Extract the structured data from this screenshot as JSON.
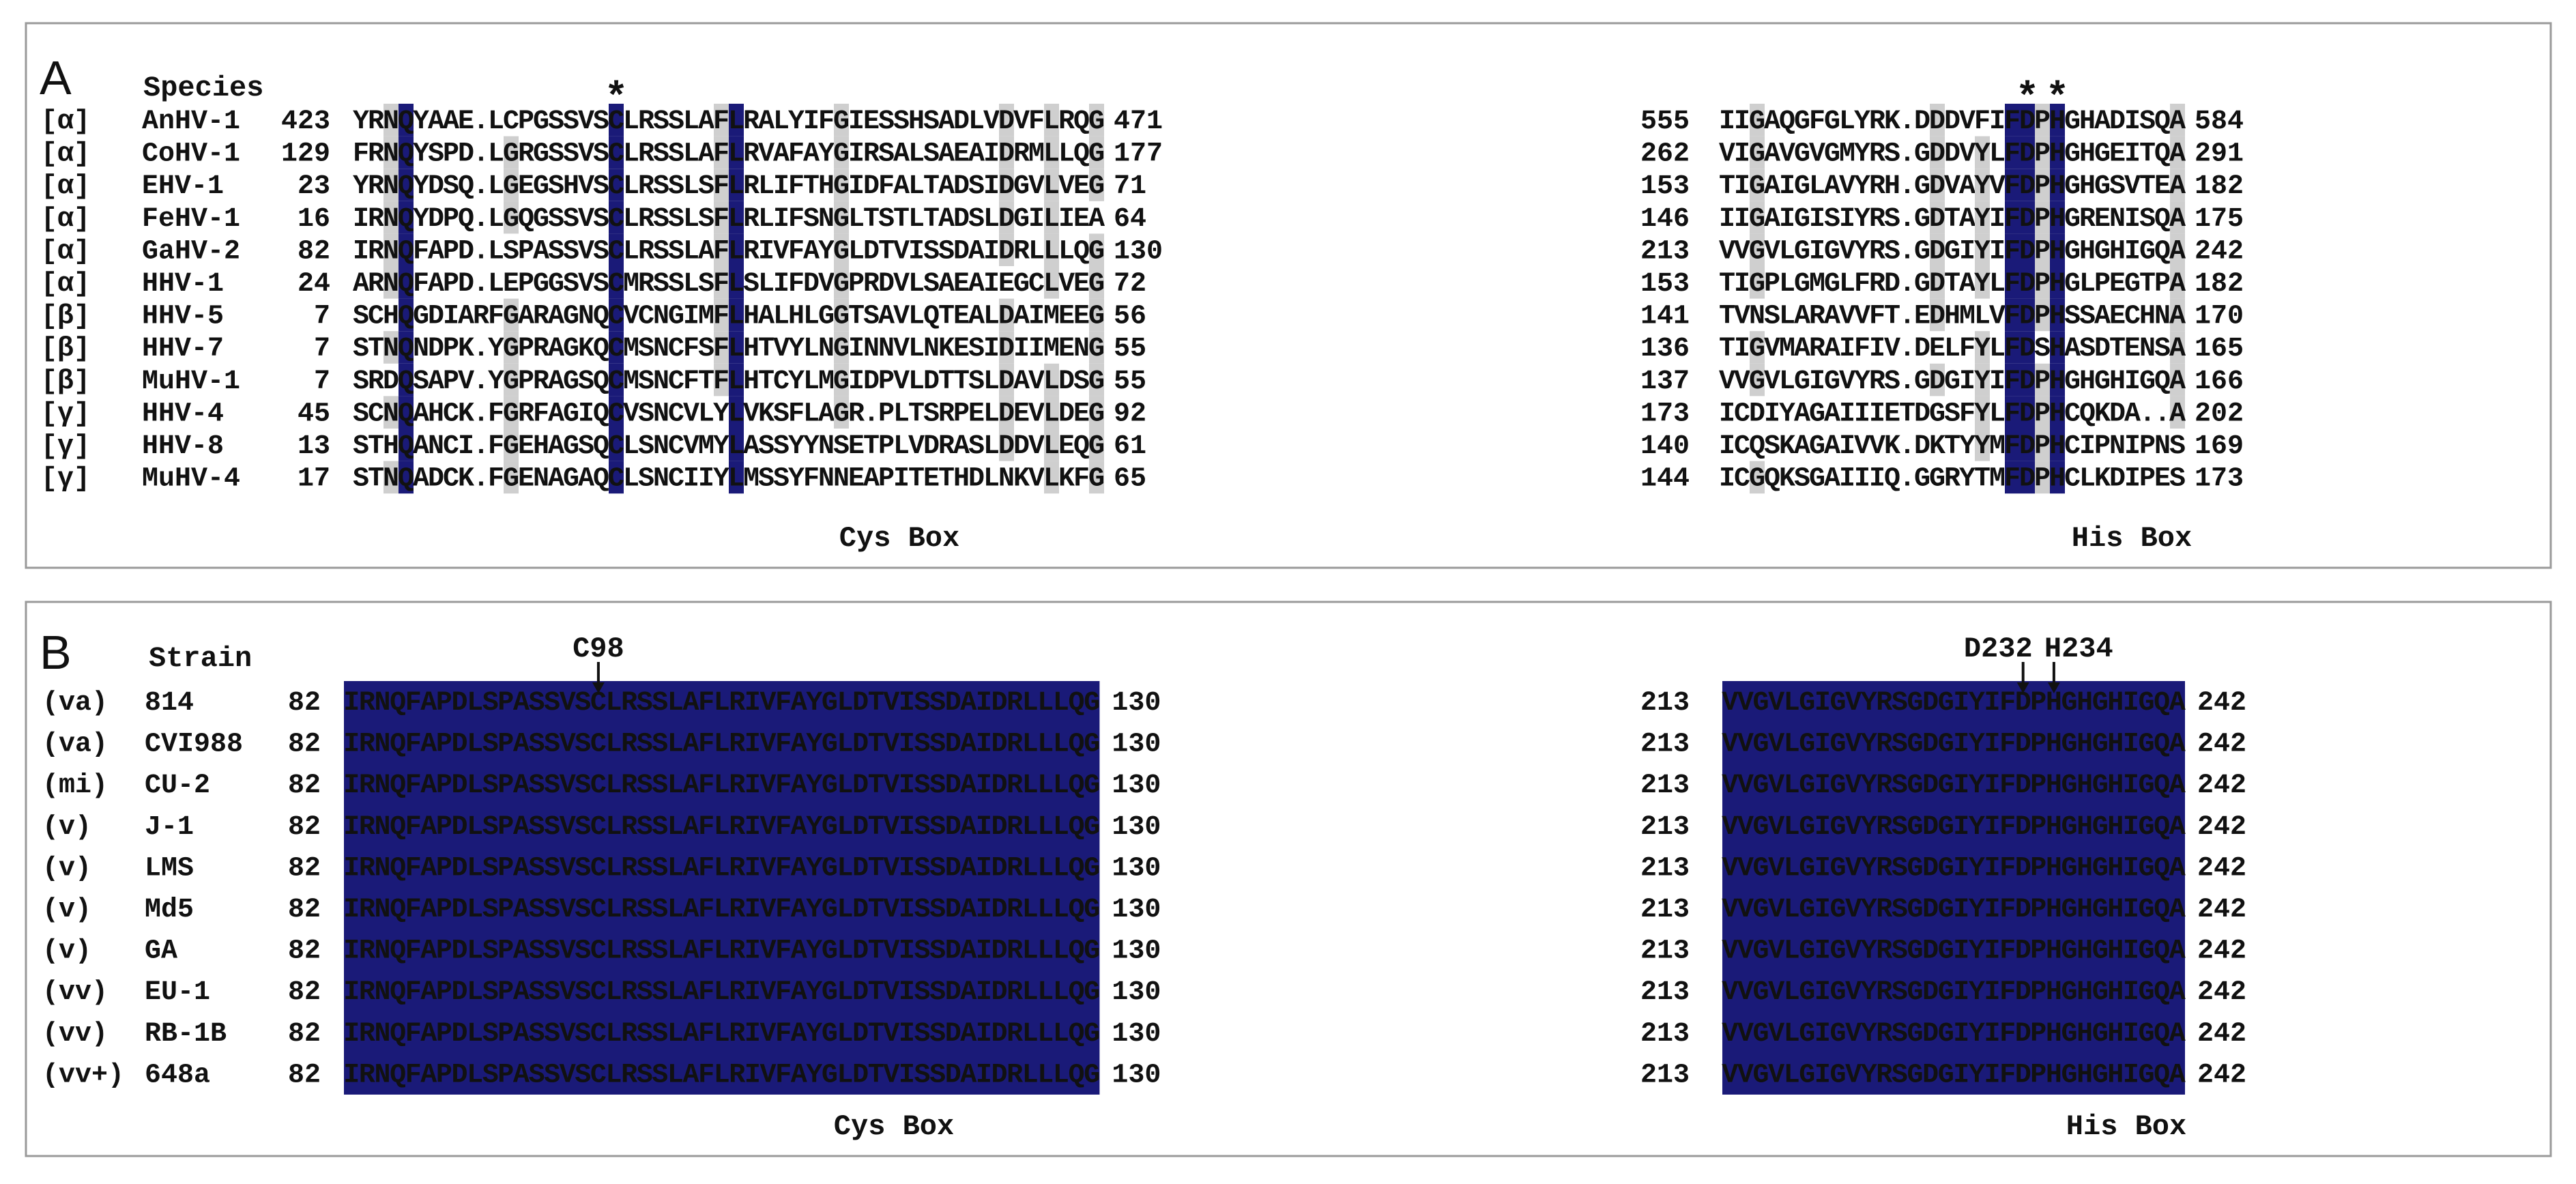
{
  "panel_a": {
    "label": "A",
    "header": "Species",
    "box_labels": [
      "Cys Box",
      "His Box"
    ],
    "rows": [
      {
        "cls": "[α]",
        "name": "AnHV-1",
        "s1": "423",
        "cys": "YRNQYAAE.LCPGSSVSCLRSSLAFLRALYIFGIESSHSADLVDVFLRQG",
        "e1": "471",
        "s2": "555",
        "his": "IIGAQGFGLYRK.DDDVFIFDPHGHADISQA",
        "e2": "584"
      },
      {
        "cls": "[α]",
        "name": "CoHV-1",
        "s1": "129",
        "cys": "FRNQYSPD.LGRGSSVSCLRSSLAFLRVAFAYGIRSALSAEAIDRMLLQG",
        "e1": "177",
        "s2": "262",
        "his": "VIGAVGVGMYRS.GDDVYLFDPHGHGEITQA",
        "e2": "291"
      },
      {
        "cls": "[α]",
        "name": "EHV-1",
        "s1": "23",
        "cys": "YRNQYDSQ.LGEGSHVSCLRSSLSFLRLIFTHGIDFALTADSIDGVLVEG",
        "e1": "71",
        "s2": "153",
        "his": "TIGAIGLAVYRH.GDVAYVFDPHGHGSVTEA",
        "e2": "182"
      },
      {
        "cls": "[α]",
        "name": "FeHV-1",
        "s1": "16",
        "cys": "IRNQYDPQ.LGQGSSVSCLRSSLSFLRLIFSNGLTSTLTADSLDGILIEA",
        "e1": "64",
        "s2": "146",
        "his": "IIGAIGISIYRS.GDTAYIFDPHGRENISQA",
        "e2": "175"
      },
      {
        "cls": "[α]",
        "name": "GaHV-2",
        "s1": "82",
        "cys": "IRNQFAPD.LSPASSVSCLRSSLAFLRIVFAYGLDTVISSDAIDRLLLQG",
        "e1": "130",
        "s2": "213",
        "his": "VVGVLGIGVYRS.GDGIYIFDPHGHGHIGQA",
        "e2": "242"
      },
      {
        "cls": "[α]",
        "name": "HHV-1",
        "s1": "24",
        "cys": "ARNQFAPD.LEPGGSVSCMRSSLSFLSLIFDVGPRDVLSAEAIEGCLVEG",
        "e1": "72",
        "s2": "153",
        "his": "TIGPLGMGLFRD.GDTAYLFDPHGLPEGTPA",
        "e2": "182"
      },
      {
        "cls": "[β]",
        "name": "HHV-5",
        "s1": "7",
        "cys": "SCHQGDIARFGARAGNQCVCNGIMFLHALHLGGTSAVLQTEALDAIMEEG",
        "e1": "56",
        "s2": "141",
        "his": "TVNSLARAVVFT.EDHMLVFDPHSSAECHNA",
        "e2": "170"
      },
      {
        "cls": "[β]",
        "name": "HHV-7",
        "s1": "7",
        "cys": "STNQNDPK.YGPRAGKQCMSNCFSFLHTVYLNGINNVLNKESIDIIMENG",
        "e1": "55",
        "s2": "136",
        "his": "TIGVMARAIFIV.DELFYLFDSHASDTENSA",
        "e2": "165"
      },
      {
        "cls": "[β]",
        "name": "MuHV-1",
        "s1": "7",
        "cys": "SRDQSAPV.YGPRAGSQCMSNCFTFLHTCYLMGIDPVLDTTSLDAVLDSG",
        "e1": "55",
        "s2": "137",
        "his": "VVGVLGIGVYRS.GDGIYIFDPHGHGHIGQA",
        "e2": "166"
      },
      {
        "cls": "[γ]",
        "name": "HHV-4",
        "s1": "45",
        "cys": "SCNQAHCK.FGRFAGIQCVSNCVLYLVKSFLAGR.PLTSRPELDEVLDEG",
        "e1": "92",
        "s2": "173",
        "his": "ICDIYAGAIIIETDGSFYLFDPHCQKDA..A",
        "e2": "202"
      },
      {
        "cls": "[γ]",
        "name": "HHV-8",
        "s1": "13",
        "cys": "STHQANCI.FGEHAGSQCLSNCVMYLASSYYNSETPLVDRASLDDVLEQG",
        "e1": "61",
        "s2": "140",
        "his": "ICQSKAGAIVVK.DKTYYMFDPHCIPNIPNS",
        "e2": "169"
      },
      {
        "cls": "[γ]",
        "name": "MuHV-4",
        "s1": "17",
        "cys": "STNQADCK.FGENAGAQCLSNCIIYLMSSYFNNEAPITETHDLNKVLKFG",
        "e1": "65",
        "s2": "144",
        "his": "ICGQKSGAIIIQ.GGRYTMFDPHCLKDIPES",
        "e2": "173"
      }
    ]
  },
  "panel_b": {
    "label": "B",
    "header": "Strain",
    "box_labels": [
      "Cys Box",
      "His Box"
    ],
    "markers": [
      "C98",
      "D232",
      "H234"
    ],
    "cys_seq": "IRNQFAPDLSPASSVSCLRSSLAFLRIVFAYGLDTVISSDAIDRLLLQG",
    "his_seq": "VVGVLGIGVYRSGDGIYIFDPHGHGHIGQA",
    "start1": "82",
    "end1": "130",
    "start2": "213",
    "end2": "242",
    "rows": [
      {
        "cls": "(va)",
        "name": "814"
      },
      {
        "cls": "(va)",
        "name": "CVI988"
      },
      {
        "cls": "(mi)",
        "name": "CU-2"
      },
      {
        "cls": "(v)",
        "name": "J-1"
      },
      {
        "cls": "(v)",
        "name": "LMS"
      },
      {
        "cls": "(v)",
        "name": "Md5"
      },
      {
        "cls": "(v)",
        "name": "GA"
      },
      {
        "cls": "(vv)",
        "name": "EU-1"
      },
      {
        "cls": "(vv)",
        "name": "RB-1B"
      },
      {
        "cls": "(vv+)",
        "name": "648a"
      }
    ]
  },
  "colors": {
    "navy": "#1a1a78",
    "gray": "#cfcfcf",
    "text": "#111111",
    "border": "#9a9a9a"
  }
}
